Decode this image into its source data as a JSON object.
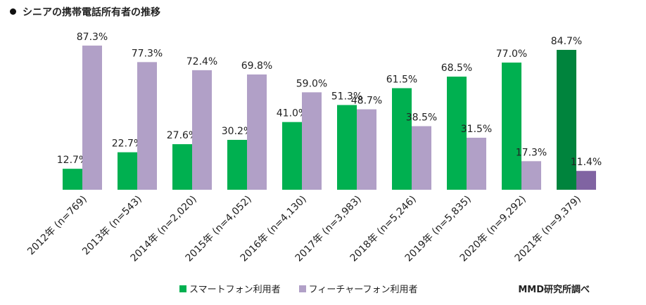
{
  "title": "シニアの携帯電話所有者の推移",
  "source": "MMD研究所調べ",
  "colors": {
    "smartphone": "#00B050",
    "feature": "#B1A0C7",
    "smartphone_highlight": "#00843D",
    "feature_highlight": "#8064A2"
  },
  "chart_data": {
    "type": "bar",
    "categories": [
      "2012年 (n=769)",
      "2013年 (n=543)",
      "2014年 (n=2,020)",
      "2015年 (n=4,052)",
      "2016年 (n=4,130)",
      "2017年 (n=3,983)",
      "2018年 (n=5,246)",
      "2019年 (n=5,835)",
      "2020年 (n=9,292)",
      "2021年 (n=9,379)"
    ],
    "series": [
      {
        "name": "スマートフォン利用者",
        "values": [
          12.7,
          22.7,
          27.6,
          30.2,
          41.0,
          51.3,
          61.5,
          68.5,
          77.0,
          84.7
        ],
        "labels": [
          "12.7%",
          "22.7%",
          "27.6%",
          "30.2%",
          "41.0%",
          "51.3%",
          "61.5%",
          "68.5%",
          "77.0%",
          "84.7%"
        ]
      },
      {
        "name": "フィーチャーフォン利用者",
        "values": [
          87.3,
          77.3,
          72.4,
          69.8,
          59.0,
          48.7,
          38.5,
          31.5,
          17.3,
          11.4
        ],
        "labels": [
          "87.3%",
          "77.3%",
          "72.4%",
          "69.8%",
          "59.0%",
          "48.7%",
          "38.5%",
          "31.5%",
          "17.3%",
          "11.4%"
        ]
      }
    ],
    "highlight_index": 9,
    "ylim": [
      0,
      100
    ],
    "grid": false,
    "legend_position": "bottom"
  }
}
